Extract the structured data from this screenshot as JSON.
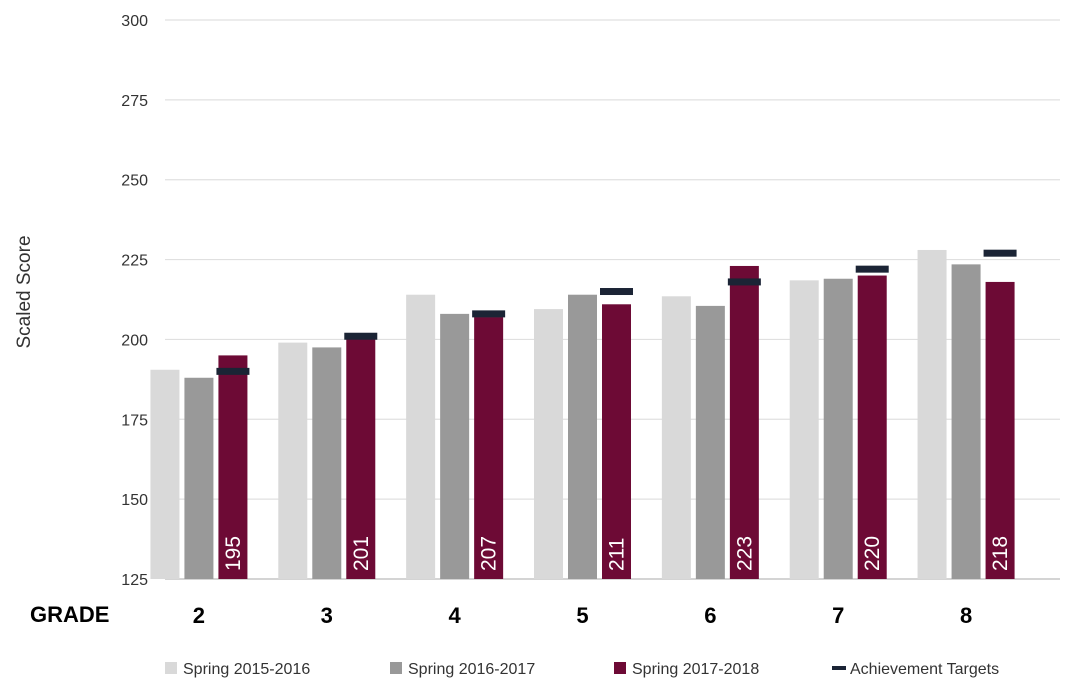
{
  "chart_data": {
    "type": "bar",
    "ylabel": "Scaled Score",
    "xlabel": "GRADE",
    "ylim": [
      125,
      300
    ],
    "yticks": [
      125,
      150,
      175,
      200,
      225,
      250,
      275,
      300
    ],
    "grid": true,
    "legend_position": "bottom",
    "categories": [
      "2",
      "3",
      "4",
      "5",
      "6",
      "7",
      "8"
    ],
    "series": [
      {
        "name": "Spring 2015-2016",
        "color": "#d9d9d9",
        "values": [
          190.5,
          199,
          214,
          209.5,
          213.5,
          218.5,
          228
        ]
      },
      {
        "name": "Spring 2016-2017",
        "color": "#999999",
        "values": [
          188,
          197.5,
          208,
          214,
          210.5,
          219,
          223.5
        ]
      },
      {
        "name": "Spring 2017-2018",
        "color": "#6d0a35",
        "values": [
          195,
          201,
          207,
          211,
          223,
          220,
          218
        ],
        "data_labels": [
          "195",
          "201",
          "207",
          "211",
          "223",
          "220",
          "218"
        ]
      }
    ],
    "targets": {
      "name": "Achievement Targets",
      "color": "#1b2435",
      "values": [
        190,
        201,
        208,
        215,
        218,
        222,
        227
      ]
    }
  }
}
